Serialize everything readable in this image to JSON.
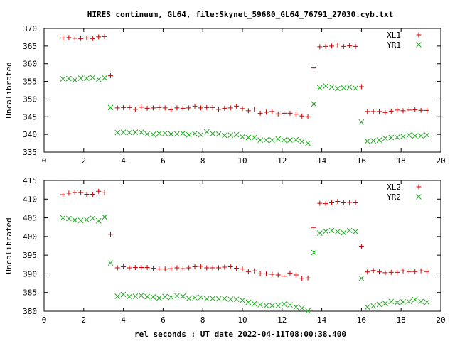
{
  "title": "HIRES continuum, GL64, file:Skynet_59680_GL64_76791_27030.cyb.txt",
  "xlabel": "rel seconds : UT date 2022-04-11T08:00:38.400",
  "colors": {
    "red": "#cc0000",
    "green": "#22aa22",
    "axis": "#000000"
  },
  "chart_data": [
    {
      "type": "scatter",
      "ylabel": "Uncalibrated",
      "xlim": [
        0,
        20
      ],
      "ylim": [
        335,
        370
      ],
      "xticks": [
        0,
        2,
        4,
        6,
        8,
        10,
        12,
        14,
        16,
        18,
        20
      ],
      "yticks": [
        335,
        340,
        345,
        350,
        355,
        360,
        365,
        370
      ],
      "legend_position": "top-right",
      "grid": false,
      "series": [
        {
          "name": "XL1",
          "marker": "plus",
          "color": "#cc0000",
          "points": [
            [
              0.95,
              367.3
            ],
            [
              1.25,
              367.4
            ],
            [
              1.55,
              367.2
            ],
            [
              1.85,
              367.1
            ],
            [
              2.15,
              367.3
            ],
            [
              2.45,
              367.1
            ],
            [
              2.75,
              367.6
            ],
            [
              3.05,
              367.7
            ],
            [
              3.35,
              356.6
            ],
            [
              3.7,
              347.5
            ],
            [
              4.0,
              347.6
            ],
            [
              4.3,
              347.6
            ],
            [
              4.6,
              347.1
            ],
            [
              4.9,
              347.7
            ],
            [
              5.2,
              347.4
            ],
            [
              5.5,
              347.5
            ],
            [
              5.8,
              347.6
            ],
            [
              6.1,
              347.5
            ],
            [
              6.4,
              347.0
            ],
            [
              6.7,
              347.5
            ],
            [
              7.0,
              347.4
            ],
            [
              7.3,
              347.5
            ],
            [
              7.6,
              348.0
            ],
            [
              7.9,
              347.5
            ],
            [
              8.2,
              347.6
            ],
            [
              8.5,
              347.6
            ],
            [
              8.8,
              347.1
            ],
            [
              9.1,
              347.4
            ],
            [
              9.4,
              347.5
            ],
            [
              9.7,
              348.0
            ],
            [
              10.0,
              347.3
            ],
            [
              10.3,
              346.7
            ],
            [
              10.6,
              347.2
            ],
            [
              10.9,
              346.0
            ],
            [
              11.2,
              346.3
            ],
            [
              11.5,
              346.5
            ],
            [
              11.8,
              345.8
            ],
            [
              12.1,
              346.0
            ],
            [
              12.4,
              346.0
            ],
            [
              12.7,
              345.7
            ],
            [
              13.0,
              345.2
            ],
            [
              13.3,
              345.0
            ],
            [
              13.6,
              358.8
            ],
            [
              13.9,
              364.8
            ],
            [
              14.2,
              364.9
            ],
            [
              14.5,
              365.0
            ],
            [
              14.8,
              365.3
            ],
            [
              15.1,
              364.9
            ],
            [
              15.4,
              365.1
            ],
            [
              15.7,
              364.9
            ],
            [
              16.0,
              353.5
            ],
            [
              16.3,
              346.5
            ],
            [
              16.6,
              346.5
            ],
            [
              16.9,
              346.5
            ],
            [
              17.2,
              346.2
            ],
            [
              17.5,
              346.6
            ],
            [
              17.8,
              346.9
            ],
            [
              18.1,
              346.7
            ],
            [
              18.4,
              346.9
            ],
            [
              18.7,
              347.0
            ],
            [
              19.0,
              346.8
            ],
            [
              19.3,
              346.8
            ]
          ]
        },
        {
          "name": "YR1",
          "marker": "cross",
          "color": "#22aa22",
          "points": [
            [
              0.95,
              355.7
            ],
            [
              1.25,
              355.8
            ],
            [
              1.55,
              355.4
            ],
            [
              1.85,
              355.9
            ],
            [
              2.15,
              355.9
            ],
            [
              2.45,
              356.1
            ],
            [
              2.75,
              355.6
            ],
            [
              3.05,
              356.0
            ],
            [
              3.35,
              347.6
            ],
            [
              3.7,
              340.5
            ],
            [
              4.0,
              340.6
            ],
            [
              4.3,
              340.5
            ],
            [
              4.6,
              340.6
            ],
            [
              4.9,
              340.6
            ],
            [
              5.2,
              340.1
            ],
            [
              5.5,
              340.0
            ],
            [
              5.8,
              340.3
            ],
            [
              6.1,
              340.3
            ],
            [
              6.4,
              340.1
            ],
            [
              6.7,
              340.1
            ],
            [
              7.0,
              340.3
            ],
            [
              7.3,
              339.9
            ],
            [
              7.6,
              340.2
            ],
            [
              7.9,
              339.9
            ],
            [
              8.2,
              340.7
            ],
            [
              8.5,
              340.2
            ],
            [
              8.8,
              340.1
            ],
            [
              9.1,
              339.7
            ],
            [
              9.4,
              339.8
            ],
            [
              9.7,
              339.9
            ],
            [
              10.0,
              339.3
            ],
            [
              10.3,
              339.1
            ],
            [
              10.6,
              339.1
            ],
            [
              10.9,
              338.4
            ],
            [
              11.2,
              338.4
            ],
            [
              11.5,
              338.4
            ],
            [
              11.8,
              338.7
            ],
            [
              12.1,
              338.4
            ],
            [
              12.4,
              338.4
            ],
            [
              12.7,
              338.5
            ],
            [
              13.0,
              338.0
            ],
            [
              13.3,
              337.5
            ],
            [
              13.6,
              348.6
            ],
            [
              13.9,
              353.2
            ],
            [
              14.2,
              353.7
            ],
            [
              14.5,
              353.4
            ],
            [
              14.8,
              353.0
            ],
            [
              15.1,
              353.2
            ],
            [
              15.4,
              353.4
            ],
            [
              15.7,
              353.1
            ],
            [
              16.0,
              343.5
            ],
            [
              16.3,
              338.1
            ],
            [
              16.6,
              338.2
            ],
            [
              16.9,
              338.4
            ],
            [
              17.2,
              338.9
            ],
            [
              17.5,
              339.1
            ],
            [
              17.8,
              339.2
            ],
            [
              18.1,
              339.4
            ],
            [
              18.4,
              339.8
            ],
            [
              18.7,
              339.6
            ],
            [
              19.0,
              339.6
            ],
            [
              19.3,
              339.8
            ]
          ]
        }
      ]
    },
    {
      "type": "scatter",
      "ylabel": "Uncalibrated",
      "xlim": [
        0,
        20
      ],
      "ylim": [
        380,
        415
      ],
      "xticks": [
        0,
        2,
        4,
        6,
        8,
        10,
        12,
        14,
        16,
        18,
        20
      ],
      "yticks": [
        380,
        385,
        390,
        395,
        400,
        405,
        410,
        415
      ],
      "legend_position": "top-right",
      "grid": false,
      "series": [
        {
          "name": "XL2",
          "marker": "plus",
          "color": "#cc0000",
          "points": [
            [
              0.95,
              411.2
            ],
            [
              1.25,
              411.6
            ],
            [
              1.55,
              411.8
            ],
            [
              1.85,
              411.8
            ],
            [
              2.15,
              411.3
            ],
            [
              2.45,
              411.3
            ],
            [
              2.75,
              412.1
            ],
            [
              3.05,
              411.7
            ],
            [
              3.35,
              400.6
            ],
            [
              3.7,
              391.6
            ],
            [
              4.0,
              391.9
            ],
            [
              4.3,
              391.6
            ],
            [
              4.6,
              391.7
            ],
            [
              4.9,
              391.7
            ],
            [
              5.2,
              391.7
            ],
            [
              5.5,
              391.5
            ],
            [
              5.8,
              391.3
            ],
            [
              6.1,
              391.3
            ],
            [
              6.4,
              391.4
            ],
            [
              6.7,
              391.6
            ],
            [
              7.0,
              391.4
            ],
            [
              7.3,
              391.6
            ],
            [
              7.6,
              391.9
            ],
            [
              7.9,
              392.0
            ],
            [
              8.2,
              391.6
            ],
            [
              8.5,
              391.6
            ],
            [
              8.8,
              391.6
            ],
            [
              9.1,
              391.8
            ],
            [
              9.4,
              391.9
            ],
            [
              9.7,
              391.5
            ],
            [
              10.0,
              391.3
            ],
            [
              10.3,
              390.6
            ],
            [
              10.6,
              390.8
            ],
            [
              10.9,
              390.0
            ],
            [
              11.2,
              390.0
            ],
            [
              11.5,
              389.9
            ],
            [
              11.8,
              389.7
            ],
            [
              12.1,
              389.4
            ],
            [
              12.4,
              390.2
            ],
            [
              12.7,
              389.7
            ],
            [
              13.0,
              388.8
            ],
            [
              13.3,
              388.9
            ],
            [
              13.6,
              402.4
            ],
            [
              13.9,
              408.9
            ],
            [
              14.2,
              408.8
            ],
            [
              14.5,
              409.0
            ],
            [
              14.8,
              409.4
            ],
            [
              15.1,
              409.0
            ],
            [
              15.4,
              409.1
            ],
            [
              15.7,
              409.0
            ],
            [
              16.0,
              397.4
            ],
            [
              16.3,
              390.5
            ],
            [
              16.6,
              390.9
            ],
            [
              16.9,
              390.5
            ],
            [
              17.2,
              390.3
            ],
            [
              17.5,
              390.4
            ],
            [
              17.8,
              390.4
            ],
            [
              18.1,
              390.8
            ],
            [
              18.4,
              390.6
            ],
            [
              18.7,
              390.6
            ],
            [
              19.0,
              390.8
            ],
            [
              19.3,
              390.6
            ]
          ]
        },
        {
          "name": "YR2",
          "marker": "cross",
          "color": "#22aa22",
          "points": [
            [
              0.95,
              405.0
            ],
            [
              1.25,
              404.8
            ],
            [
              1.55,
              404.4
            ],
            [
              1.85,
              404.3
            ],
            [
              2.15,
              404.5
            ],
            [
              2.45,
              404.9
            ],
            [
              2.75,
              404.2
            ],
            [
              3.05,
              405.2
            ],
            [
              3.35,
              392.9
            ],
            [
              3.7,
              384.0
            ],
            [
              4.0,
              384.5
            ],
            [
              4.3,
              383.9
            ],
            [
              4.6,
              384.0
            ],
            [
              4.9,
              384.2
            ],
            [
              5.2,
              383.9
            ],
            [
              5.5,
              383.8
            ],
            [
              5.8,
              383.5
            ],
            [
              6.1,
              383.9
            ],
            [
              6.4,
              383.7
            ],
            [
              6.7,
              384.1
            ],
            [
              7.0,
              384.0
            ],
            [
              7.3,
              383.4
            ],
            [
              7.6,
              383.6
            ],
            [
              7.9,
              383.7
            ],
            [
              8.2,
              383.3
            ],
            [
              8.5,
              383.4
            ],
            [
              8.8,
              383.3
            ],
            [
              9.1,
              383.4
            ],
            [
              9.4,
              383.2
            ],
            [
              9.7,
              383.2
            ],
            [
              10.0,
              382.9
            ],
            [
              10.3,
              382.4
            ],
            [
              10.6,
              382.0
            ],
            [
              10.9,
              381.7
            ],
            [
              11.2,
              381.5
            ],
            [
              11.5,
              381.5
            ],
            [
              11.8,
              381.5
            ],
            [
              12.1,
              381.9
            ],
            [
              12.4,
              381.7
            ],
            [
              12.7,
              381.1
            ],
            [
              13.0,
              380.8
            ],
            [
              13.3,
              380.1
            ],
            [
              13.6,
              395.7
            ],
            [
              13.9,
              400.9
            ],
            [
              14.2,
              401.4
            ],
            [
              14.5,
              401.6
            ],
            [
              14.8,
              401.3
            ],
            [
              15.1,
              401.0
            ],
            [
              15.4,
              401.6
            ],
            [
              15.7,
              401.3
            ],
            [
              16.0,
              388.8
            ],
            [
              16.3,
              381.1
            ],
            [
              16.6,
              381.4
            ],
            [
              16.9,
              381.8
            ],
            [
              17.2,
              382.1
            ],
            [
              17.5,
              382.6
            ],
            [
              17.8,
              382.3
            ],
            [
              18.1,
              382.5
            ],
            [
              18.4,
              382.6
            ],
            [
              18.7,
              383.1
            ],
            [
              19.0,
              382.6
            ],
            [
              19.3,
              382.4
            ]
          ]
        }
      ]
    }
  ]
}
